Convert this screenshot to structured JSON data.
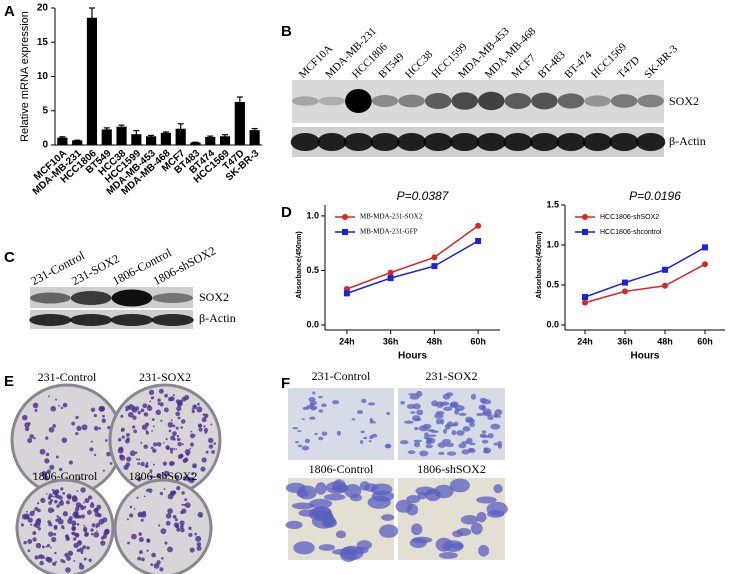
{
  "panel_labels": [
    "A",
    "B",
    "C",
    "D",
    "E",
    "F"
  ],
  "chart_data": [
    {
      "type": "bar",
      "y_label": "Relative mRNA expression",
      "categories": [
        "MCF10A",
        "MDA-MB-231",
        "HCC1806",
        "BT549",
        "HCC38",
        "HCC1599",
        "MDA-MB-453",
        "MDA-MB-468",
        "MCF7",
        "BT483",
        "BT474",
        "HCC1569",
        "T47D",
        "SK-BR-3"
      ],
      "values": [
        1.0,
        0.6,
        18.5,
        2.2,
        2.6,
        1.5,
        1.2,
        1.7,
        2.3,
        0.3,
        1.1,
        1.2,
        6.2,
        2.1
      ],
      "errors": [
        0.2,
        0.1,
        1.5,
        0.3,
        0.3,
        0.6,
        0.2,
        0.2,
        0.8,
        0.1,
        0.2,
        0.3,
        0.8,
        0.3
      ],
      "color": "#000000",
      "ylim": [
        0,
        20
      ],
      "yticks": [
        0,
        5,
        10,
        15,
        20
      ]
    },
    {
      "type": "line",
      "title": "P=0.0387",
      "x_label": "Hours",
      "y_label": "Absorbance(450nm)",
      "categories": [
        "24h",
        "36h",
        "48h",
        "60h"
      ],
      "series": [
        {
          "name": "MB-MDA-231-SOX2",
          "color": "#d62728",
          "marker": "circle",
          "values": [
            0.33,
            0.48,
            0.62,
            0.91
          ]
        },
        {
          "name": "MB-MDA-231-GFP",
          "color": "#1f1fe0",
          "marker": "square",
          "values": [
            0.29,
            0.43,
            0.54,
            0.77
          ]
        }
      ],
      "ylim": [
        0,
        1.1
      ],
      "yticks": [
        {
          "value": 0,
          "label": "0.0"
        },
        0.5,
        {
          "value": 1,
          "label": "1.0"
        }
      ],
      "legend": "top-left"
    },
    {
      "type": "line",
      "title": "P=0.0196",
      "x_label": "Hours",
      "y_label": "Absorbance(450nm)",
      "categories": [
        "24h",
        "36h",
        "48h",
        "60h"
      ],
      "series": [
        {
          "name": "HCC1806-shSOX2",
          "color": "#d62728",
          "marker": "circle",
          "values": [
            0.28,
            0.42,
            0.49,
            0.76
          ]
        },
        {
          "name": "HCC1806-shcontrol",
          "color": "#1f1fe0",
          "marker": "square",
          "values": [
            0.35,
            0.53,
            0.69,
            0.97
          ]
        }
      ],
      "ylim": [
        0,
        1.5
      ],
      "yticks": [
        {
          "value": 0,
          "label": "0.0"
        },
        0.5,
        {
          "value": 1,
          "label": "1.0"
        },
        1.5
      ],
      "legend": "top-left"
    }
  ],
  "blot_b": {
    "lanes": [
      "MCF10A",
      "MDA-MB-231",
      "HCC1806",
      "BT549",
      "HCC38",
      "HCC1599",
      "MDA-MB-453",
      "MDA-MB-468",
      "MCF7",
      "BT-483",
      "BT-474",
      "HCC1569",
      "T47D",
      "SK-BR-3"
    ],
    "rows": [
      "SOX2",
      "β-Actin"
    ]
  },
  "blot_c": {
    "lanes": [
      "231-Control",
      "231-SOX2",
      "1806-Control",
      "1806-shSOX2"
    ],
    "rows": [
      "SOX2",
      "β-Actin"
    ]
  },
  "colony_e": {
    "labels": [
      "231-Control",
      "231-SOX2",
      "1806-Control",
      "1806-shSOX2"
    ]
  },
  "transwell_f": {
    "labels": [
      "231-Control",
      "231-SOX2",
      "1806-Control",
      "1806-shSOX2"
    ]
  }
}
